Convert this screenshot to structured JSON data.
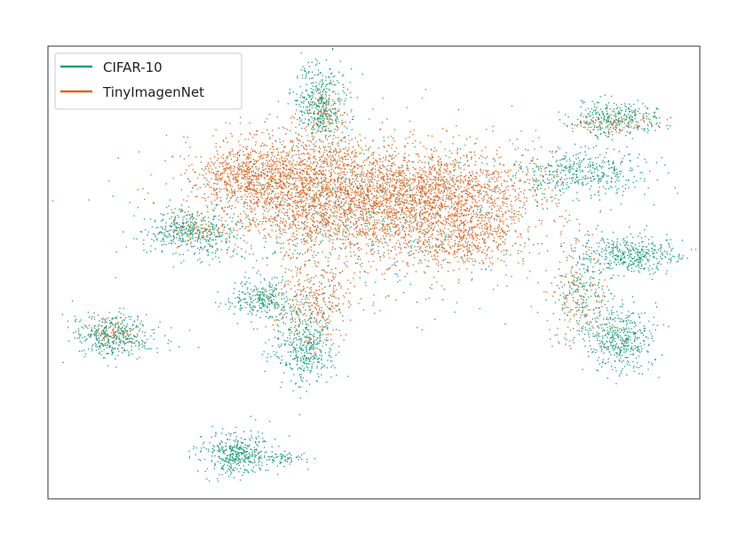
{
  "chart_data": {
    "type": "scatter",
    "title": "",
    "xlabel": "",
    "ylabel": "",
    "xlim": [
      0,
      100
    ],
    "ylim": [
      0,
      100
    ],
    "grid": false,
    "ticks_visible": false,
    "legend_placement": "top-left",
    "series": [
      {
        "name": "CIFAR-10",
        "color": "#1b9e77",
        "clusters": [
          {
            "cx": 10,
            "cy": 36,
            "sx": 3.2,
            "sy": 2.5,
            "n": 420
          },
          {
            "cx": 22,
            "cy": 59,
            "sx": 3.6,
            "sy": 2.4,
            "n": 420
          },
          {
            "cx": 42,
            "cy": 87,
            "sx": 2.0,
            "sy": 4.6,
            "n": 450
          },
          {
            "cx": 87,
            "cy": 84,
            "sx": 3.4,
            "sy": 1.8,
            "n": 330
          },
          {
            "cx": 82,
            "cy": 72,
            "sx": 5.2,
            "sy": 2.6,
            "n": 420
          },
          {
            "cx": 89,
            "cy": 54,
            "sx": 4.2,
            "sy": 2.1,
            "n": 420
          },
          {
            "cx": 88,
            "cy": 35,
            "sx": 2.4,
            "sy": 3.4,
            "n": 420
          },
          {
            "cx": 33,
            "cy": 44,
            "sx": 2.6,
            "sy": 2.1,
            "n": 280
          },
          {
            "cx": 39,
            "cy": 34,
            "sx": 2.4,
            "sy": 4.4,
            "n": 460
          },
          {
            "cx": 29,
            "cy": 10,
            "sx": 2.5,
            "sy": 2.5,
            "n": 420
          },
          {
            "cx": 36,
            "cy": 9,
            "sx": 1.5,
            "sy": 0.7,
            "n": 70
          },
          {
            "cx": 48,
            "cy": 62,
            "sx": 15,
            "sy": 9,
            "n": 700
          },
          {
            "cx": 82,
            "cy": 44,
            "sx": 2.4,
            "sy": 5.0,
            "n": 200
          }
        ]
      },
      {
        "name": "TinyImagenNet",
        "color": "#e0621c",
        "clusters": [
          {
            "cx": 40,
            "cy": 70,
            "sx": 8,
            "sy": 6,
            "n": 1500
          },
          {
            "cx": 52,
            "cy": 64,
            "sx": 11,
            "sy": 6.5,
            "n": 2000
          },
          {
            "cx": 62,
            "cy": 68,
            "sx": 7,
            "sy": 4.5,
            "n": 800
          },
          {
            "cx": 31,
            "cy": 72,
            "sx": 4,
            "sy": 3.5,
            "n": 500
          },
          {
            "cx": 64,
            "cy": 57,
            "sx": 4,
            "sy": 3,
            "n": 300
          },
          {
            "cx": 41,
            "cy": 44,
            "sx": 3,
            "sy": 5,
            "n": 300
          },
          {
            "cx": 82,
            "cy": 44,
            "sx": 2.5,
            "sy": 5.5,
            "n": 140
          },
          {
            "cx": 10,
            "cy": 37,
            "sx": 2.2,
            "sy": 1.6,
            "n": 70
          },
          {
            "cx": 87,
            "cy": 83,
            "sx": 2.6,
            "sy": 1.4,
            "n": 80
          },
          {
            "cx": 43,
            "cy": 86,
            "sx": 1.5,
            "sy": 3.2,
            "n": 60
          },
          {
            "cx": 23,
            "cy": 59,
            "sx": 2.5,
            "sy": 1.8,
            "n": 60
          }
        ]
      }
    ]
  }
}
